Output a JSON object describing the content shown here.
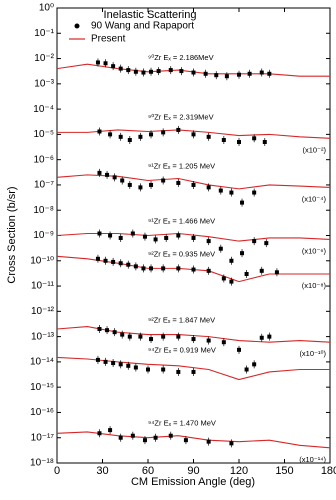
{
  "chart_data": {
    "type": "scatter",
    "title": "Inelastic Scattering",
    "x_label": "CM Emission Angle (deg)",
    "y_label": "Cross Section (b/sr)",
    "log_y": true,
    "xlim": [
      0,
      180
    ],
    "xticks": [
      0,
      30,
      60,
      90,
      120,
      150,
      180
    ],
    "ylim": [
      1e-18,
      1
    ],
    "yticks": [
      {
        "value": 1,
        "label": "10⁰"
      },
      {
        "value": 0.1,
        "label": "10⁻¹"
      },
      {
        "value": 0.01,
        "label": "10⁻²"
      },
      {
        "value": 0.001,
        "label": "10⁻³"
      },
      {
        "value": 0.0001,
        "label": "10⁻⁴"
      },
      {
        "value": 1e-05,
        "label": "10⁻⁵"
      },
      {
        "value": 1e-06,
        "label": "10⁻⁶"
      },
      {
        "value": 1e-07,
        "label": "10⁻⁷"
      },
      {
        "value": 1e-08,
        "label": "10⁻⁸"
      },
      {
        "value": 1e-09,
        "label": "10⁻⁹"
      },
      {
        "value": 1e-10,
        "label": "10⁻¹⁰"
      },
      {
        "value": 1e-11,
        "label": "10⁻¹¹"
      },
      {
        "value": 1e-12,
        "label": "10⁻¹²"
      },
      {
        "value": 1e-13,
        "label": "10⁻¹³"
      },
      {
        "value": 1e-14,
        "label": "10⁻¹⁴"
      },
      {
        "value": 1e-15,
        "label": "10⁻¹⁵"
      },
      {
        "value": 1e-16,
        "label": "10⁻¹⁶"
      },
      {
        "value": 1e-17,
        "label": "10⁻¹⁷"
      },
      {
        "value": 1e-18,
        "label": "10⁻¹⁸"
      }
    ],
    "legend_position": "upper left",
    "legend": [
      {
        "name": "90 Wang and Rapaport",
        "color": "#000000"
      },
      {
        "name": "Present",
        "color": "#d62728"
      }
    ],
    "datasets": [
      {
        "label": "⁹⁰Zr  Eₓ = 2.186MeV",
        "x": [
          27,
          32,
          37,
          42,
          47,
          52,
          57,
          62,
          67,
          75,
          82,
          90,
          98,
          105,
          112,
          120,
          127,
          135,
          140
        ],
        "values": [
          0.007,
          0.0065,
          0.005,
          0.004,
          0.0035,
          0.003,
          0.0028,
          0.003,
          0.0032,
          0.0035,
          0.0032,
          0.0028,
          0.0025,
          0.0022,
          0.002,
          0.0023,
          0.0025,
          0.0028,
          0.0025
        ],
        "curve_x": [
          0,
          20,
          40,
          60,
          80,
          100,
          120,
          140,
          160,
          180
        ],
        "curve": [
          0.004,
          0.006,
          0.004,
          0.003,
          0.0035,
          0.0025,
          0.0025,
          0.0025,
          0.002,
          0.002
        ]
      },
      {
        "label": "⁹⁰Zr  Eₓ = 2.319MeV",
        "scale": "(x10⁻²)",
        "x": [
          28,
          35,
          42,
          48,
          55,
          62,
          70,
          80,
          90,
          100,
          110,
          120,
          130,
          137
        ],
        "values": [
          1.3e-05,
          1e-05,
          8e-06,
          6e-06,
          8e-06,
          1e-05,
          1.2e-05,
          1.5e-05,
          1e-05,
          8e-06,
          6e-06,
          5e-06,
          7e-06,
          5e-06
        ],
        "curve_x": [
          0,
          20,
          40,
          60,
          80,
          100,
          120,
          140,
          160,
          180
        ],
        "curve": [
          1.2e-05,
          1.2e-05,
          1.5e-05,
          1.3e-05,
          1.5e-05,
          1.2e-05,
          9e-06,
          1e-05,
          8e-06,
          7e-06
        ]
      },
      {
        "label": "⁹¹Zr  Eₓ = 1.205 MeV",
        "scale": "(x10⁻⁴)",
        "x": [
          28,
          33,
          38,
          43,
          48,
          55,
          62,
          70,
          80,
          90,
          100,
          108,
          115,
          122,
          130
        ],
        "values": [
          3e-07,
          2.5e-07,
          2e-07,
          1.5e-07,
          1e-07,
          8e-08,
          1e-07,
          1.5e-07,
          1.2e-07,
          1e-07,
          8e-08,
          6e-08,
          5e-08,
          2e-08,
          5e-08
        ],
        "curve_x": [
          0,
          20,
          40,
          60,
          80,
          100,
          120,
          140,
          160,
          180
        ],
        "curve": [
          2e-07,
          2.5e-07,
          2.2e-07,
          1.5e-07,
          1.8e-07,
          1e-07,
          7e-08,
          1e-07,
          9e-08,
          8e-08
        ]
      },
      {
        "label": "⁹¹Zr  Eₓ = 1.466 MeV",
        "scale": "(x10⁻⁶)",
        "x": [
          28,
          35,
          42,
          50,
          58,
          65,
          72,
          80,
          90,
          100,
          108,
          115,
          122,
          130,
          138
        ],
        "values": [
          1.2e-09,
          1e-09,
          8e-10,
          1.2e-09,
          9e-10,
          7e-10,
          8e-10,
          1e-09,
          8e-10,
          6e-10,
          3e-10,
          1e-10,
          2e-10,
          6e-10,
          5e-10
        ],
        "curve_x": [
          0,
          20,
          40,
          60,
          80,
          100,
          120,
          140,
          160,
          180
        ],
        "curve": [
          1e-09,
          1.2e-09,
          1.2e-09,
          1e-09,
          1.2e-09,
          9e-10,
          6e-10,
          8e-10,
          8e-10,
          7e-10
        ]
      },
      {
        "label": "⁹²Zr  Eₓ = 0.935 MeV",
        "scale": "(x10⁻⁸)",
        "x": [
          27,
          32,
          37,
          42,
          47,
          52,
          57,
          62,
          70,
          80,
          90,
          100,
          110,
          115,
          125,
          135,
          145
        ],
        "values": [
          1.2e-10,
          1e-10,
          9e-11,
          8e-11,
          7e-11,
          6e-11,
          5e-11,
          5e-11,
          5e-11,
          5e-11,
          4.5e-11,
          4e-11,
          2e-11,
          1.5e-11,
          3e-11,
          4e-11,
          3.5e-11
        ],
        "curve_x": [
          0,
          20,
          40,
          60,
          80,
          100,
          120,
          140,
          160,
          180
        ],
        "curve": [
          1.5e-10,
          1.2e-10,
          8e-11,
          5e-11,
          5e-11,
          4e-11,
          1.5e-11,
          3e-11,
          3e-11,
          3e-11
        ]
      },
      {
        "label": "⁹²Zr  Eₓ = 1.847 MeV",
        "scale": "(x10⁻¹⁰)",
        "x": [
          28,
          33,
          38,
          43,
          48,
          55,
          62,
          70,
          80,
          90,
          100,
          110,
          120,
          125,
          130,
          135,
          140
        ],
        "values": [
          2e-13,
          1.8e-13,
          1.5e-13,
          1.2e-13,
          1e-13,
          1e-13,
          8e-14,
          1e-13,
          1e-13,
          8e-14,
          7e-14,
          6e-14,
          3e-14,
          5e-15,
          8e-15,
          9e-14,
          1e-13
        ],
        "curve_x": [
          0,
          20,
          40,
          60,
          80,
          100,
          120,
          140,
          160,
          180
        ],
        "curve": [
          2e-13,
          2.5e-13,
          1.5e-13,
          1.2e-13,
          1.2e-13,
          1e-13,
          7e-14,
          6e-14,
          7e-14,
          6e-14
        ]
      },
      {
        "label": "⁹⁴Zr  Eₓ = 0.919 MeV",
        "x": [
          27,
          32,
          37,
          42,
          47,
          52,
          60,
          70,
          80,
          90
        ],
        "values": [
          1.2e-14,
          1e-14,
          9e-15,
          8e-15,
          7e-15,
          6e-15,
          5e-15,
          5e-15,
          4e-15,
          4e-15
        ],
        "curve_x": [
          0,
          20,
          40,
          60,
          80,
          100,
          120,
          140,
          160,
          180
        ],
        "curve": [
          1.5e-14,
          1.3e-14,
          1e-14,
          8e-15,
          7e-15,
          5e-15,
          2e-15,
          4e-15,
          5e-15,
          5e-15
        ]
      },
      {
        "label": "⁹⁴Zr  Eₓ = 1.470 MeV",
        "scale": "(x10⁻¹⁴)",
        "x": [
          28,
          35,
          42,
          50,
          58,
          65,
          75,
          85,
          100,
          115
        ],
        "values": [
          1.5e-17,
          2e-17,
          1e-17,
          1.2e-17,
          8e-18,
          1e-17,
          1.2e-17,
          8e-18,
          7e-18,
          6e-18
        ],
        "curve_x": [
          0,
          20,
          40,
          60,
          80,
          100,
          120,
          140,
          160,
          180
        ],
        "curve": [
          1.5e-17,
          1.7e-17,
          1.2e-17,
          1e-17,
          1.2e-17,
          8e-18,
          7e-18,
          8e-18,
          5e-18,
          4e-18
        ]
      }
    ]
  }
}
